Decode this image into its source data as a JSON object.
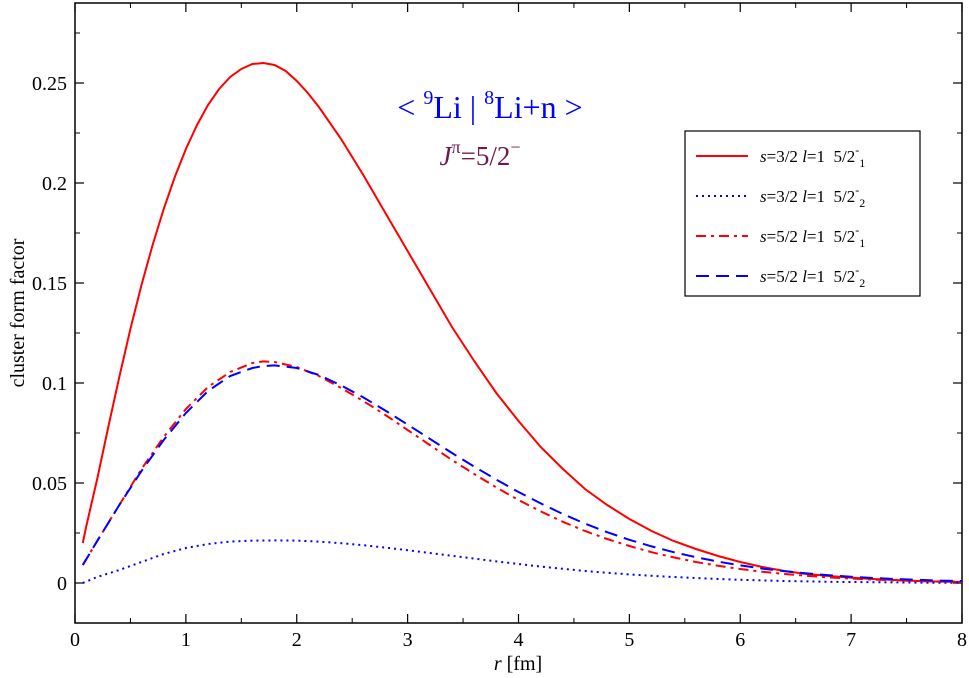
{
  "chart_data": {
    "type": "line",
    "xlabel": {
      "var": "r",
      "unit": "[fm]"
    },
    "ylabel": "cluster form factor",
    "xlim": [
      0,
      8
    ],
    "ylim": [
      -0.02,
      0.29
    ],
    "xticks": [
      "0",
      "1",
      "2",
      "3",
      "4",
      "5",
      "6",
      "7",
      "8"
    ],
    "yticks": [
      "0",
      "0.05",
      "0.1",
      "0.15",
      "0.2",
      "0.25"
    ],
    "grid": false,
    "legend_position": "top-right",
    "annotation": {
      "line1": {
        "open": "<",
        "sup1": "9",
        "a": "Li",
        "bar": "|",
        "sup2": "8",
        "b": "Li+n",
        "close": ">"
      },
      "line2": {
        "j": "J",
        "pi": "π",
        "val": "=5/2",
        "minus": "−"
      },
      "color1": "#0000ff",
      "color2": "#6b1a52"
    },
    "series": [
      {
        "legend": {
          "s_var": "s",
          "s_val": "=3/2",
          "l_var": "l",
          "l_val": "=1",
          "state": "5/2",
          "sup": "-",
          "sub": "1"
        },
        "color": "#ff0000",
        "dash": "solid",
        "x": [
          0.07,
          0.1,
          0.2,
          0.3,
          0.4,
          0.5,
          0.6,
          0.7,
          0.8,
          0.9,
          1.0,
          1.1,
          1.2,
          1.3,
          1.4,
          1.5,
          1.6,
          1.7,
          1.8,
          1.9,
          2.0,
          2.1,
          2.2,
          2.4,
          2.6,
          2.8,
          3.0,
          3.2,
          3.4,
          3.6,
          3.8,
          4.0,
          4.2,
          4.4,
          4.6,
          4.8,
          5.0,
          5.2,
          5.4,
          5.6,
          5.8,
          6.0,
          6.2,
          6.4,
          6.6,
          6.8,
          7.0,
          7.2,
          7.4,
          7.6,
          7.8,
          8.0
        ],
        "y": [
          0.02,
          0.028,
          0.052,
          0.078,
          0.103,
          0.127,
          0.149,
          0.169,
          0.187,
          0.203,
          0.217,
          0.229,
          0.239,
          0.247,
          0.253,
          0.257,
          0.2595,
          0.26,
          0.259,
          0.256,
          0.251,
          0.245,
          0.238,
          0.222,
          0.204,
          0.185,
          0.166,
          0.147,
          0.128,
          0.111,
          0.095,
          0.081,
          0.068,
          0.057,
          0.047,
          0.039,
          0.032,
          0.026,
          0.021,
          0.017,
          0.0135,
          0.0105,
          0.008,
          0.006,
          0.0045,
          0.0035,
          0.0027,
          0.002,
          0.0015,
          0.001,
          0.0007,
          0.0005
        ]
      },
      {
        "legend": {
          "s_var": "s",
          "s_val": "=3/2",
          "l_var": "l",
          "l_val": "=1",
          "state": "5/2",
          "sup": "-",
          "sub": "2"
        },
        "color": "#0000ff",
        "dash": "dotted",
        "x": [
          0.07,
          0.2,
          0.4,
          0.6,
          0.8,
          1.0,
          1.2,
          1.4,
          1.6,
          1.8,
          2.0,
          2.2,
          2.4,
          2.6,
          2.8,
          3.0,
          3.2,
          3.4,
          3.6,
          3.8,
          4.0,
          4.2,
          4.4,
          4.6,
          4.8,
          5.0,
          5.2,
          5.4,
          5.6,
          5.8,
          6.0,
          6.2,
          6.4,
          6.6,
          6.8,
          7.0,
          7.2,
          7.4,
          7.6,
          7.8,
          8.0
        ],
        "y": [
          0.0,
          0.003,
          0.0065,
          0.0105,
          0.0145,
          0.0175,
          0.0195,
          0.0207,
          0.0212,
          0.0213,
          0.0212,
          0.0207,
          0.0199,
          0.0189,
          0.0177,
          0.0164,
          0.015,
          0.0136,
          0.0122,
          0.0108,
          0.0095,
          0.0082,
          0.0071,
          0.006,
          0.0051,
          0.0043,
          0.0036,
          0.003,
          0.0025,
          0.002,
          0.0016,
          0.0013,
          0.001,
          0.0008,
          0.0006,
          0.0005,
          0.0004,
          0.0003,
          0.0002,
          0.0001,
          0.0001
        ]
      },
      {
        "legend": {
          "s_var": "s",
          "s_val": "=5/2",
          "l_var": "l",
          "l_val": "=1",
          "state": "5/2",
          "sup": "-",
          "sub": "1"
        },
        "color": "#ff0000",
        "dash": "dashdot",
        "x": [
          0.07,
          0.2,
          0.4,
          0.6,
          0.8,
          1.0,
          1.2,
          1.4,
          1.6,
          1.7,
          1.8,
          2.0,
          2.2,
          2.4,
          2.6,
          2.8,
          3.0,
          3.2,
          3.4,
          3.6,
          3.8,
          4.0,
          4.2,
          4.4,
          4.6,
          4.8,
          5.0,
          5.2,
          5.4,
          5.6,
          5.8,
          6.0,
          6.2,
          6.4,
          6.6,
          6.8,
          7.0,
          7.2,
          7.4,
          7.6,
          7.8,
          8.0
        ],
        "y": [
          0.009,
          0.021,
          0.039,
          0.057,
          0.073,
          0.087,
          0.098,
          0.1055,
          0.11,
          0.1108,
          0.1105,
          0.108,
          0.1035,
          0.0975,
          0.091,
          0.084,
          0.0765,
          0.069,
          0.0615,
          0.0545,
          0.0478,
          0.0415,
          0.0358,
          0.0306,
          0.026,
          0.022,
          0.0185,
          0.0154,
          0.0128,
          0.0105,
          0.0086,
          0.007,
          0.0056,
          0.0045,
          0.0036,
          0.0028,
          0.0022,
          0.0017,
          0.0013,
          0.001,
          0.0008,
          0.0006
        ]
      },
      {
        "legend": {
          "s_var": "s",
          "s_val": "=5/2",
          "l_var": "l",
          "l_val": "=1",
          "state": "5/2",
          "sup": "-",
          "sub": "2"
        },
        "color": "#0000ff",
        "dash": "dashed",
        "x": [
          0.07,
          0.2,
          0.4,
          0.6,
          0.8,
          1.0,
          1.2,
          1.4,
          1.6,
          1.7,
          1.8,
          2.0,
          2.2,
          2.4,
          2.6,
          2.8,
          3.0,
          3.2,
          3.4,
          3.6,
          3.8,
          4.0,
          4.2,
          4.4,
          4.6,
          4.8,
          5.0,
          5.2,
          5.4,
          5.6,
          5.8,
          6.0,
          6.2,
          6.4,
          6.6,
          6.8,
          7.0,
          7.2,
          7.4,
          7.6,
          7.8,
          8.0
        ],
        "y": [
          0.009,
          0.021,
          0.039,
          0.056,
          0.0715,
          0.085,
          0.096,
          0.1035,
          0.1075,
          0.1085,
          0.1088,
          0.1075,
          0.104,
          0.0988,
          0.0928,
          0.0862,
          0.0792,
          0.0721,
          0.065,
          0.0582,
          0.0517,
          0.0455,
          0.0398,
          0.0345,
          0.0297,
          0.0254,
          0.0216,
          0.0183,
          0.0154,
          0.0129,
          0.0107,
          0.0088,
          0.0072,
          0.0059,
          0.0048,
          0.0039,
          0.0031,
          0.0025,
          0.002,
          0.0016,
          0.0012,
          0.001
        ]
      }
    ]
  }
}
